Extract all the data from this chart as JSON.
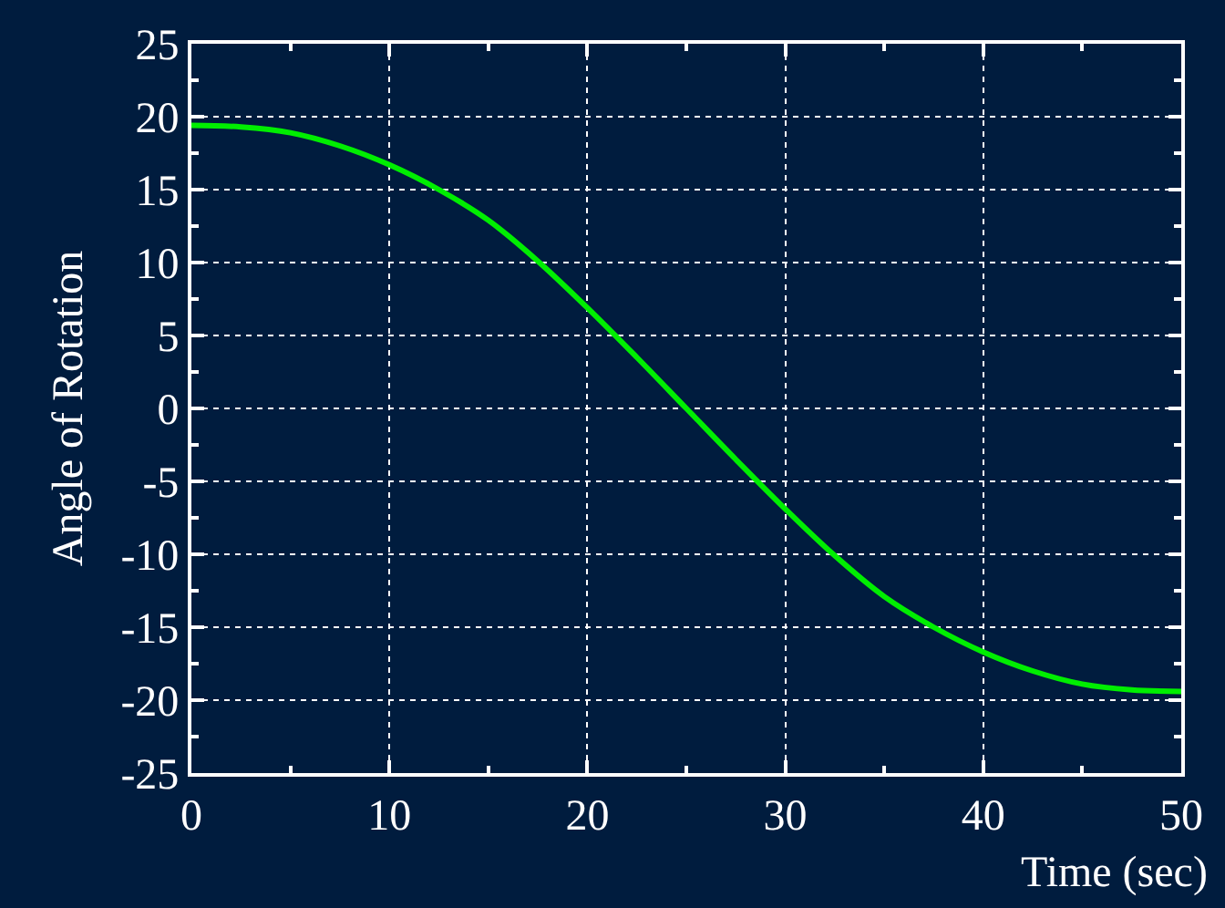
{
  "chart_data": {
    "type": "line",
    "xlabel": "Time (sec)",
    "ylabel": "Angle of Rotation",
    "x": [
      0,
      2.5,
      5,
      7.5,
      10,
      12.5,
      15,
      17.5,
      20,
      22.5,
      25,
      27.5,
      30,
      32.5,
      35,
      37.5,
      40,
      42.5,
      45,
      47.5,
      50
    ],
    "series": [
      {
        "color": "#00ee00",
        "values": [
          19.4,
          19.3,
          18.9,
          18.0,
          16.7,
          15.0,
          12.9,
          10.1,
          6.9,
          3.5,
          0,
          -3.5,
          -6.9,
          -10.1,
          -12.9,
          -15.0,
          -16.7,
          -18.0,
          -18.9,
          -19.3,
          -19.4
        ]
      }
    ],
    "xlim": [
      0,
      50
    ],
    "xticks": [
      0,
      10,
      20,
      30,
      40,
      50
    ],
    "ylim": [
      -25,
      25
    ],
    "yticks": [
      -25,
      -20,
      -15,
      -10,
      -5,
      0,
      5,
      10,
      15,
      20,
      25
    ],
    "grid": true,
    "marker": "none",
    "line_style": "solid"
  }
}
